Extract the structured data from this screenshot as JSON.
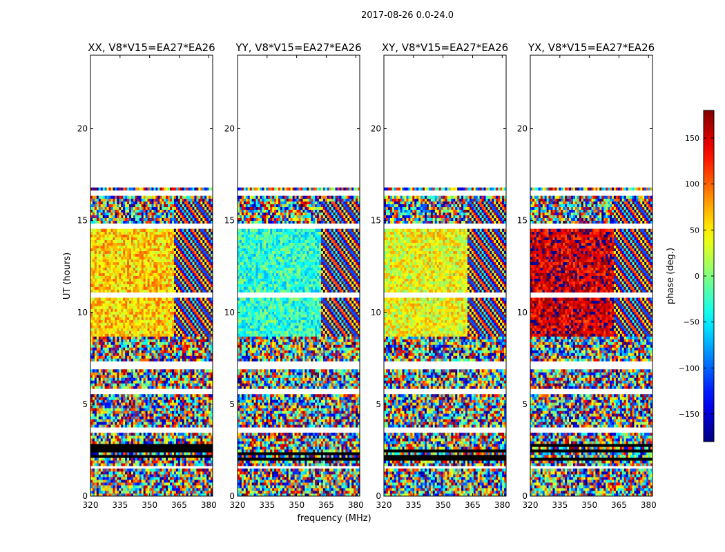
{
  "figure_title": "2017-08-26 0.0-24.0",
  "colorbar": {
    "label": "phase (deg.)",
    "range": [
      -180,
      180
    ],
    "ticks": [
      -150,
      -100,
      -50,
      0,
      50,
      100,
      150
    ],
    "tick_labels": [
      "−150",
      "−100",
      "−50",
      "0",
      "50",
      "100",
      "150"
    ],
    "colormap": "jet"
  },
  "chart_data": {
    "type": "heatmap",
    "xlabel": "frequency (MHz)",
    "ylabel": "UT (hours)",
    "xlim": [
      320,
      382
    ],
    "ylim": [
      0,
      24
    ],
    "xticks": [
      320,
      335,
      350,
      365,
      380
    ],
    "yticks": [
      0,
      5,
      10,
      15,
      20
    ],
    "panels": [
      {
        "title": "XX, V8*V15=EA27*EA26",
        "pol": "XX",
        "mean_phase_low_band_10_15h": 60
      },
      {
        "title": "YY, V8*V15=EA27*EA26",
        "pol": "YY",
        "mean_phase_low_band_10_15h": -30
      },
      {
        "title": "XY, V8*V15=EA27*EA26",
        "pol": "XY",
        "mean_phase_low_band_10_15h": 40
      },
      {
        "title": "YX, V8*V15=EA27*EA26",
        "pol": "YX",
        "mean_phase_low_band_10_15h": 150
      }
    ],
    "data_extent_hours": [
      0,
      16.7
    ],
    "flagged_rows_hours": [
      1.5,
      3.5,
      5.6,
      6.9,
      7.1,
      10.9,
      14.6,
      16.4
    ]
  }
}
